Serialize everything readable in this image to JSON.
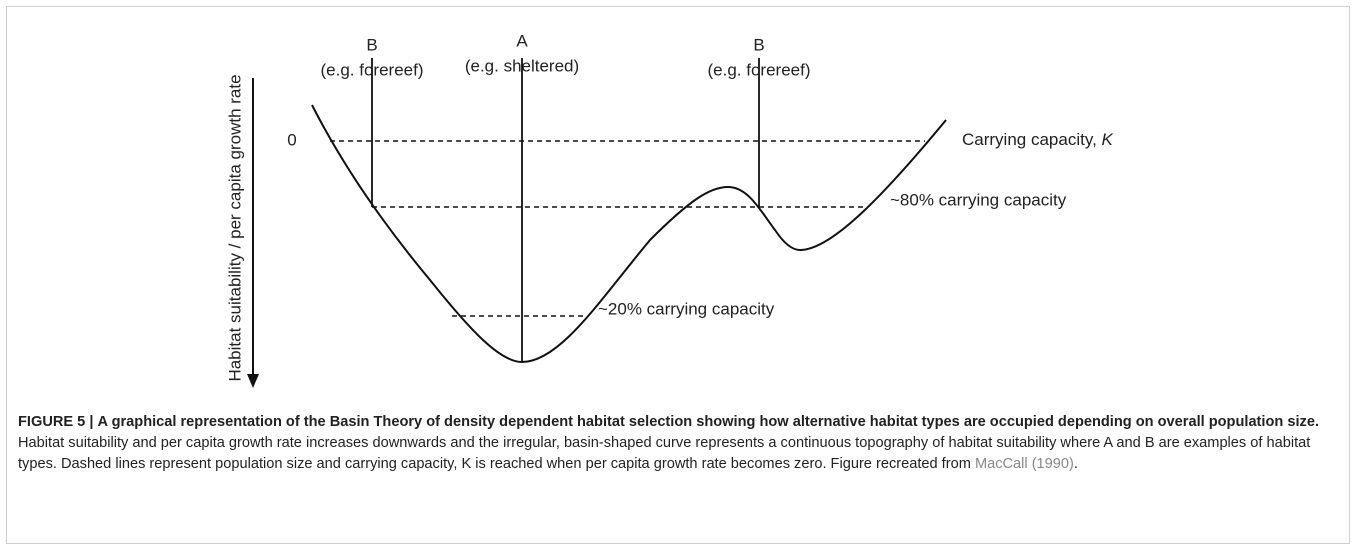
{
  "figure": {
    "y_axis_label": "Habitat suitability / per capita growth rate",
    "zero_label": "0",
    "habitats": [
      {
        "letter": "B",
        "example": "(e.g. forereef)"
      },
      {
        "letter": "A",
        "example": "(e.g. sheltered)"
      },
      {
        "letter": "B",
        "example": "(e.g. forereef)"
      }
    ],
    "levels": {
      "k_text": "Carrying capacity, ",
      "k_symbol": "K",
      "eighty": "~80% carrying capacity",
      "twenty": "~20% carrying capacity"
    }
  },
  "caption": {
    "label": "FIGURE 5 |",
    "title": "A graphical representation of the Basin Theory of density dependent habitat selection showing how alternative habitat types are occupied depending on overall population size.",
    "text": "Habitat suitability and per capita growth rate increases downwards and the irregular, basin-shaped curve represents a continuous topography of habitat suitability where A and B are examples of habitat types. Dashed lines represent population size and carrying capacity, K is reached when per capita growth rate becomes zero. Figure recreated from ",
    "citation": "MacCall (1990)",
    "end": "."
  }
}
